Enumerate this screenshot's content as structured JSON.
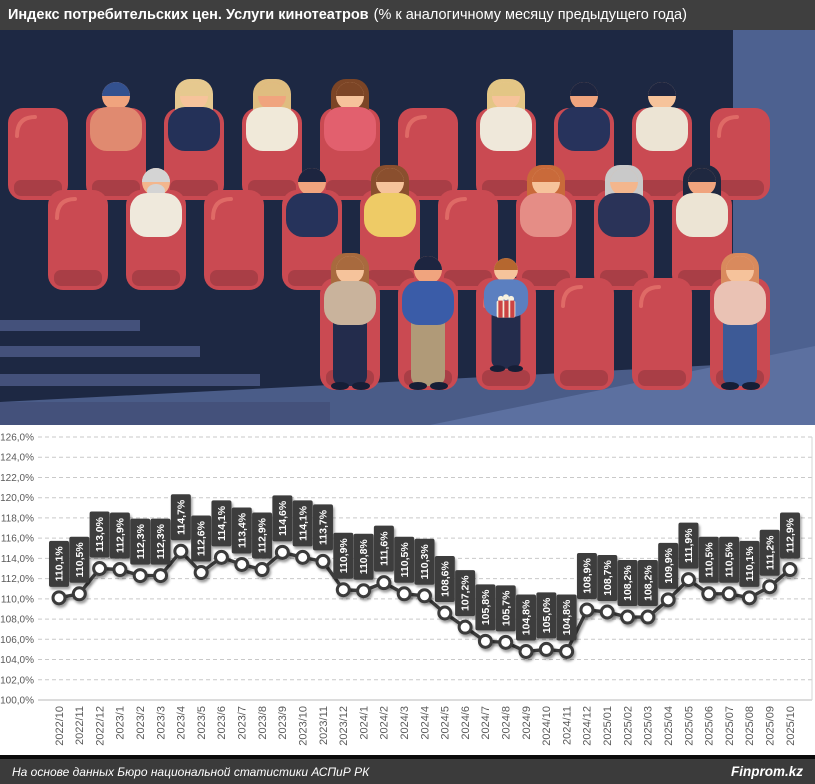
{
  "header": {
    "title_bold": "Индекс потребительских цен. Услуги кинотеатров",
    "title_normal": "(% к аналогичному месяцу предыдущего года)"
  },
  "illustration": {
    "alt": "people watching a movie in red cinema seats",
    "background": "#1d2843",
    "seat_color": "#ca4a52",
    "wall_color": "#4d6190"
  },
  "chart_data": {
    "type": "line",
    "x": [
      "2022/10",
      "2022/11",
      "2022/12",
      "2023/1",
      "2023/2",
      "2023/3",
      "2023/4",
      "2023/5",
      "2023/6",
      "2023/7",
      "2023/8",
      "2023/9",
      "2023/10",
      "2023/11",
      "2023/12",
      "2024/1",
      "2024/2",
      "2024/3",
      "2024/4",
      "2024/5",
      "2024/6",
      "2024/7",
      "2024/8",
      "2024/9",
      "2024/10",
      "2024/11",
      "2024/12",
      "2025/01",
      "2025/02",
      "2025/03",
      "2025/04",
      "2025/05",
      "2025/06",
      "2025/07",
      "2025/08",
      "2025/09",
      "2025/10"
    ],
    "values": [
      110.1,
      110.5,
      113.0,
      112.9,
      112.3,
      112.3,
      114.7,
      112.6,
      114.1,
      113.4,
      112.9,
      114.6,
      114.1,
      113.7,
      110.9,
      110.8,
      111.6,
      110.5,
      110.3,
      108.6,
      107.2,
      105.8,
      105.7,
      104.8,
      105.0,
      104.8,
      108.9,
      108.7,
      108.2,
      108.2,
      109.9,
      111.9,
      110.5,
      110.5,
      110.1,
      111.2,
      112.9
    ],
    "ylim": [
      100,
      126
    ],
    "ytick_step": 2,
    "ytick_labels": [
      "100,0%",
      "102,0%",
      "104,0%",
      "106,0%",
      "108,0%",
      "110,0%",
      "112,0%",
      "114,0%",
      "116,0%",
      "118,0%",
      "120,0%",
      "122,0%",
      "124,0%",
      "126,0%"
    ],
    "grid": "dashed-horizontal",
    "legend": "none",
    "line_color": "#3a3a3a",
    "marker_fill": "#ffffff",
    "marker_stroke": "#3a3a3a",
    "label_box_color": "#3d3d3d",
    "label_text_color": "#ffffff",
    "axis_text_color": "#595959"
  },
  "footer": {
    "source": "На основе данных Бюро национальной статистики АСПиР РК",
    "brand": "Finprom.kz"
  }
}
